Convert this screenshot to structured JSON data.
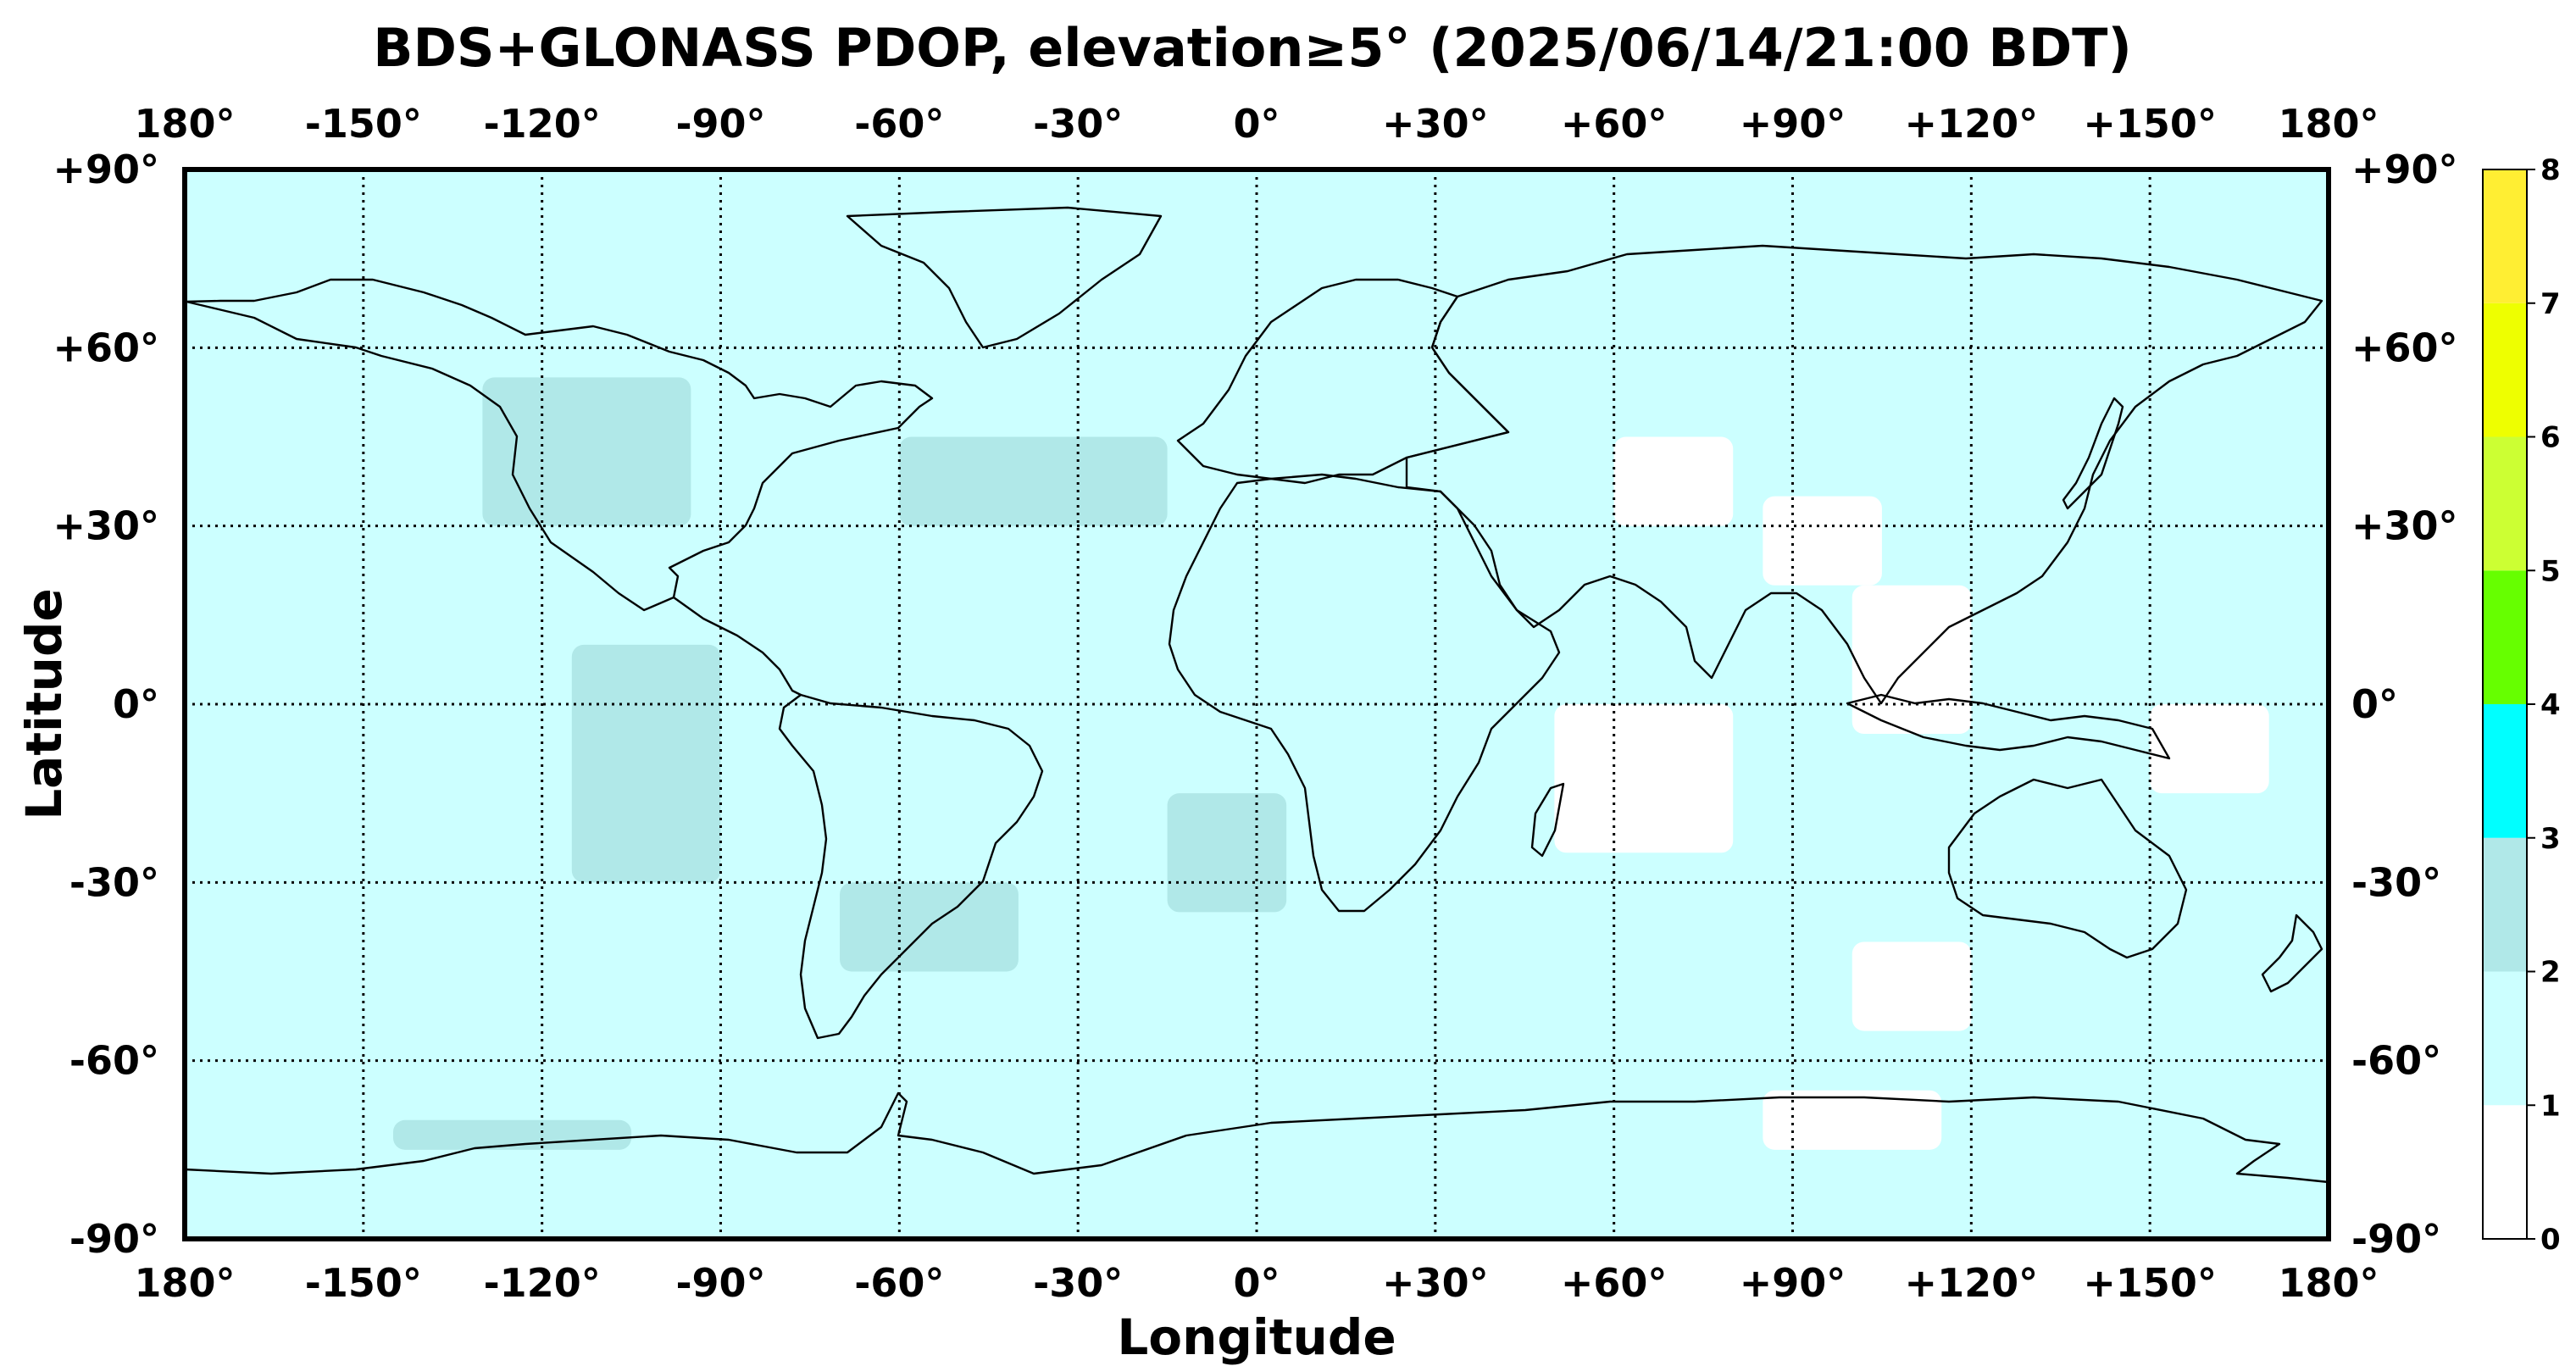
{
  "title": "BDS+GLONASS PDOP, elevation≥5° (2025/06/14/21:00 BDT)",
  "x_axis": {
    "label": "Longitude",
    "ticks": [
      "180°",
      "-150°",
      "-120°",
      "-90°",
      "-60°",
      "-30°",
      "0°",
      "+30°",
      "+60°",
      "+90°",
      "+120°",
      "+150°",
      "180°"
    ]
  },
  "y_axis": {
    "label": "Latitude",
    "ticks": [
      "+90°",
      "+60°",
      "+30°",
      "0°",
      "-30°",
      "-60°",
      "-90°"
    ]
  },
  "colorbar": {
    "ticks": [
      "0",
      "1",
      "2",
      "3",
      "4",
      "5",
      "6",
      "7",
      "8"
    ],
    "colors": [
      "#ffffff",
      "#ccffff",
      "#b0e8e8",
      "#00ffff",
      "#66ff00",
      "#ccff33",
      "#eeff00",
      "#ffee33"
    ]
  },
  "chart_data": {
    "type": "heatmap",
    "title": "BDS+GLONASS PDOP, elevation≥5° (2025/06/14/21:00 BDT)",
    "xlabel": "Longitude",
    "ylabel": "Latitude",
    "xlim": [
      -180,
      180
    ],
    "ylim": [
      -90,
      90
    ],
    "colorbar_range": [
      0,
      8
    ],
    "grid": true,
    "background_level": "1-2",
    "regions": [
      {
        "pdop": "2-3",
        "lon": [
          -130,
          -95
        ],
        "lat": [
          30,
          55
        ]
      },
      {
        "pdop": "2-3",
        "lon": [
          -115,
          -90
        ],
        "lat": [
          -30,
          10
        ]
      },
      {
        "pdop": "2-3",
        "lon": [
          -60,
          -15
        ],
        "lat": [
          30,
          45
        ]
      },
      {
        "pdop": "2-3",
        "lon": [
          -70,
          -40
        ],
        "lat": [
          -45,
          -30
        ]
      },
      {
        "pdop": "2-3",
        "lon": [
          -15,
          5
        ],
        "lat": [
          -35,
          -15
        ]
      },
      {
        "pdop": "2-3",
        "lon": [
          -145,
          -105
        ],
        "lat": [
          -75,
          -70
        ]
      },
      {
        "pdop": "0-1",
        "lon": [
          60,
          80
        ],
        "lat": [
          30,
          45
        ]
      },
      {
        "pdop": "0-1",
        "lon": [
          85,
          105
        ],
        "lat": [
          20,
          35
        ]
      },
      {
        "pdop": "0-1",
        "lon": [
          50,
          80
        ],
        "lat": [
          -25,
          0
        ]
      },
      {
        "pdop": "0-1",
        "lon": [
          100,
          120
        ],
        "lat": [
          -5,
          20
        ]
      },
      {
        "pdop": "0-1",
        "lon": [
          150,
          170
        ],
        "lat": [
          -15,
          0
        ]
      },
      {
        "pdop": "0-1",
        "lon": [
          100,
          120
        ],
        "lat": [
          -55,
          -40
        ]
      },
      {
        "pdop": "0-1",
        "lon": [
          85,
          115
        ],
        "lat": [
          -75,
          -65
        ]
      }
    ]
  }
}
